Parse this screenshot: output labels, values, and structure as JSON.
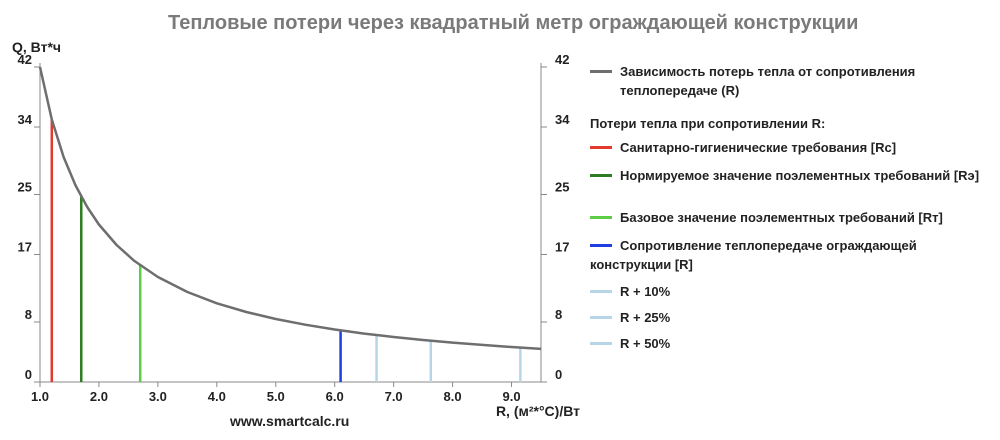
{
  "chart_data": {
    "type": "line",
    "title": "Тепловые потери через квадратный метр ограждающей конструкции",
    "ylabel": "Q, Вт*ч",
    "xlabel": "R, (м²*°C)/Вт",
    "xlim": [
      1.0,
      9.5
    ],
    "ylim": [
      0,
      42
    ],
    "x_ticks": [
      "1.0",
      "2.0",
      "3.0",
      "4.0",
      "5.0",
      "6.0",
      "7.0",
      "8.0",
      "9.0"
    ],
    "y_ticks": [
      "0",
      "8",
      "17",
      "25",
      "34",
      "42"
    ],
    "grid": false,
    "legend_position": "right",
    "curve": {
      "name": "Зависимость потерь тепла от сопротивления теплопередаче (R)",
      "color": "#6e6e6e",
      "x": [
        1.0,
        1.2,
        1.4,
        1.6,
        1.8,
        2.0,
        2.3,
        2.6,
        3.0,
        3.5,
        4.0,
        4.5,
        5.0,
        5.5,
        6.0,
        6.5,
        7.0,
        7.5,
        8.0,
        8.5,
        9.0,
        9.5
      ],
      "y": [
        42.0,
        35.0,
        30.0,
        26.25,
        23.33,
        21.0,
        18.26,
        16.15,
        14.0,
        12.0,
        10.5,
        9.33,
        8.4,
        7.64,
        7.0,
        6.46,
        6.0,
        5.6,
        5.25,
        4.94,
        4.67,
        4.42
      ]
    },
    "series": [
      {
        "name": "Санитарно-гигиенические требования [Rс]",
        "color": "#e23b2e",
        "x": 1.2,
        "y": 35.0
      },
      {
        "name": "Нормируемое значение поэлементных требований [Rэ]",
        "color": "#2e7d24",
        "x": 1.7,
        "y": 24.7
      },
      {
        "name": "Базовое значение поэлементных требований [Rт]",
        "color": "#5ccd45",
        "x": 2.7,
        "y": 15.6
      },
      {
        "name": "Сопротивление теплопередаче ограждающей конструкции [R]",
        "color": "#1f3fe0",
        "x": 6.1,
        "y": 6.9
      },
      {
        "name": "R + 10%",
        "color": "#b6d6e8",
        "x": 6.71,
        "y": 6.3
      },
      {
        "name": "R + 25%",
        "color": "#b6d6e8",
        "x": 7.63,
        "y": 5.5
      },
      {
        "name": "R + 50%",
        "color": "#b6d6e8",
        "x": 9.15,
        "y": 4.6
      }
    ]
  },
  "legend": {
    "heading": "Потери тепла при сопротивлении R:"
  },
  "watermark": "www.smartcalc.ru"
}
